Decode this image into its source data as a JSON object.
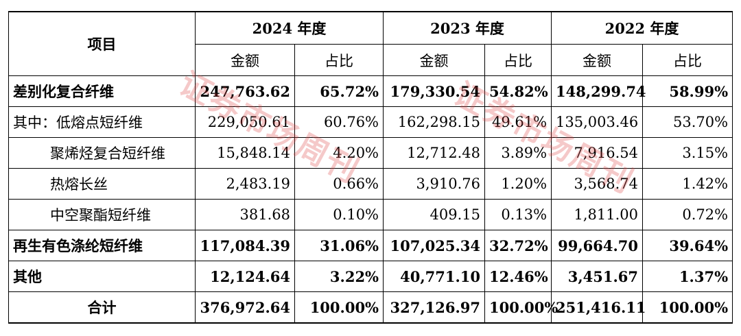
{
  "headers": {
    "item": "项目",
    "years": [
      "2024 年度",
      "2023 年度",
      "2022 年度"
    ],
    "amount": "金额",
    "ratio": "占比"
  },
  "rows": [
    {
      "label": "差别化复合纤维",
      "v": [
        "247,763.62",
        "65.72%",
        "179,330.54",
        "54.82%",
        "148,299.74",
        "58.99%"
      ]
    },
    {
      "label": "其中：低熔点短纤维",
      "v": [
        "229,050.61",
        "60.76%",
        "162,298.15",
        "49.61%",
        "135,003.46",
        "53.70%"
      ]
    },
    {
      "label": "聚烯烃复合短纤维",
      "v": [
        "15,848.14",
        "4.20%",
        "12,712.48",
        "3.89%",
        "7,916.54",
        "3.15%"
      ]
    },
    {
      "label": "热熔长丝",
      "v": [
        "2,483.19",
        "0.66%",
        "3,910.76",
        "1.20%",
        "3,568.74",
        "1.42%"
      ]
    },
    {
      "label": "中空聚酯短纤维",
      "v": [
        "381.68",
        "0.10%",
        "409.15",
        "0.13%",
        "1,811.00",
        "0.72%"
      ]
    },
    {
      "label": "再生有色涤纶短纤维",
      "v": [
        "117,084.39",
        "31.06%",
        "107,025.34",
        "32.72%",
        "99,664.70",
        "39.64%"
      ]
    },
    {
      "label": "其他",
      "v": [
        "12,124.64",
        "3.22%",
        "40,771.10",
        "12.46%",
        "3,451.67",
        "1.37%"
      ]
    },
    {
      "label": "合计",
      "v": [
        "376,972.64",
        "100.00%",
        "327,126.97",
        "100.00%",
        "251,416.11",
        "100.00%"
      ]
    }
  ],
  "watermark": {
    "text": "证券市场周刊"
  },
  "colors": {
    "watermark": "#e05050"
  }
}
